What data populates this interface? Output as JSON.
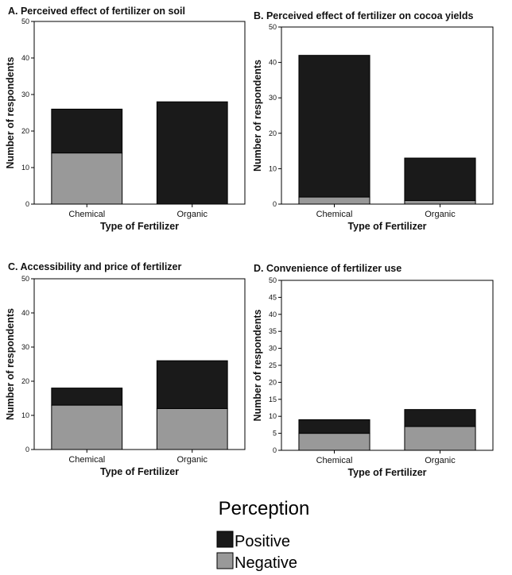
{
  "colors": {
    "positive": "#1a1a1a",
    "negative": "#999999",
    "axis": "#000000"
  },
  "legend": {
    "title": "Perception",
    "items": [
      {
        "label": "Positive",
        "color": "#1a1a1a"
      },
      {
        "label": "Negative",
        "color": "#999999"
      }
    ],
    "placement": "bottom-center"
  },
  "chart_data": [
    {
      "type": "bar",
      "stacked": true,
      "title": "A. Perceived effect of fertilizer on soil",
      "xlabel": "Type of Fertilizer",
      "ylabel": "Number of respondents",
      "categories": [
        "Chemical",
        "Organic"
      ],
      "ylim": [
        0,
        50
      ],
      "yticks": [
        0,
        10,
        20,
        30,
        40,
        50
      ],
      "series": [
        {
          "name": "Negative",
          "values": [
            14,
            0
          ]
        },
        {
          "name": "Positive",
          "values": [
            12,
            28
          ]
        }
      ]
    },
    {
      "type": "bar",
      "stacked": true,
      "title": "B. Perceived effect of fertilizer on cocoa yields",
      "xlabel": "Type of Fertilizer",
      "ylabel": "Number of respondents",
      "categories": [
        "Chemical",
        "Organic"
      ],
      "ylim": [
        0,
        50
      ],
      "yticks": [
        0,
        10,
        20,
        30,
        40,
        50
      ],
      "series": [
        {
          "name": "Negative",
          "values": [
            2,
            1
          ]
        },
        {
          "name": "Positive",
          "values": [
            40,
            12
          ]
        }
      ]
    },
    {
      "type": "bar",
      "stacked": true,
      "title": "C. Accessibility and price of fertilizer",
      "xlabel": "Type of Fertilizer",
      "ylabel": "Number of respondents",
      "categories": [
        "Chemical",
        "Organic"
      ],
      "ylim": [
        0,
        50
      ],
      "yticks": [
        0,
        10,
        20,
        30,
        40,
        50
      ],
      "series": [
        {
          "name": "Negative",
          "values": [
            13,
            12
          ]
        },
        {
          "name": "Positive",
          "values": [
            5,
            14
          ]
        }
      ]
    },
    {
      "type": "bar",
      "stacked": true,
      "title": "D. Convenience of fertilizer use",
      "xlabel": "Type of Fertilizer",
      "ylabel": "Number of respondents",
      "categories": [
        "Chemical",
        "Organic"
      ],
      "ylim": [
        0,
        50
      ],
      "yticks": [
        0,
        5,
        10,
        15,
        20,
        25,
        30,
        35,
        40,
        45,
        50
      ],
      "series": [
        {
          "name": "Negative",
          "values": [
            5,
            7
          ]
        },
        {
          "name": "Positive",
          "values": [
            4,
            5
          ]
        }
      ]
    }
  ]
}
